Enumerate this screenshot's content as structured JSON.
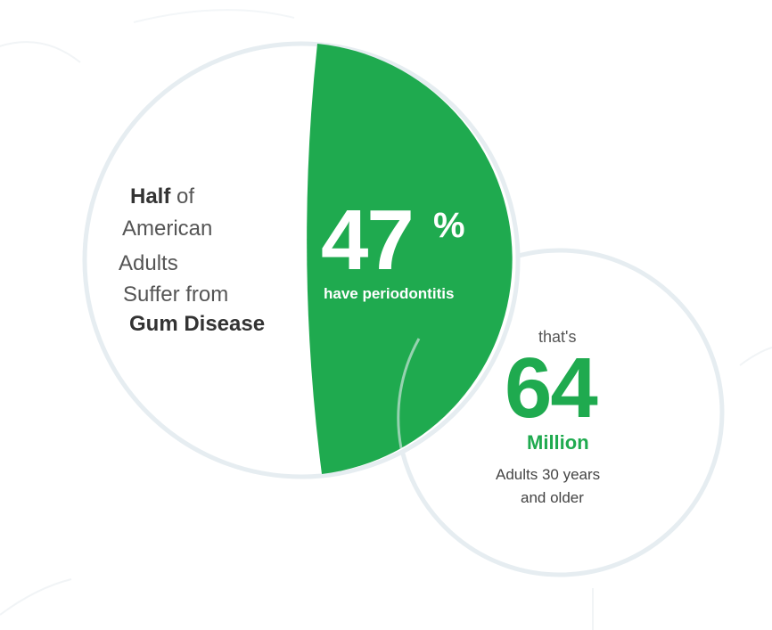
{
  "colors": {
    "green": "#1faa4f",
    "circle_stroke": "#e6edf1",
    "dark_text": "#333333",
    "gray_text": "#555555",
    "white": "#ffffff"
  },
  "left_circle": {
    "half_bold": "Half",
    "half_rest": "of",
    "line2": "American",
    "line3": "Adults",
    "line4": "Suffer from",
    "line5": "Gum Disease"
  },
  "green_segment": {
    "percent_number": "47",
    "percent_sign": "%",
    "caption": "have periodontitis",
    "percent_value": 47
  },
  "right_circle": {
    "intro": "that's",
    "big_number": "64",
    "unit": "Million",
    "line1": "Adults 30 years",
    "line2": "and older"
  }
}
